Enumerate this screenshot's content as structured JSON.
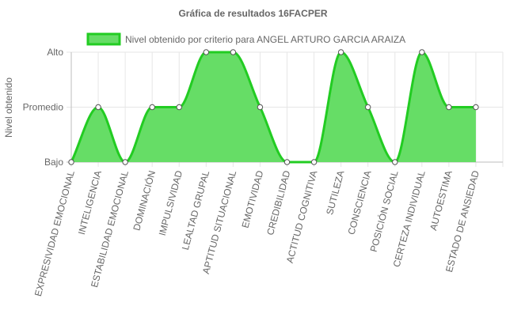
{
  "colors": {
    "fill": "#66dd66",
    "line": "#22cc22",
    "point_fill": "#ffffff",
    "point_stroke": "#555555",
    "text": "#666666"
  },
  "chart_data": {
    "type": "area",
    "title": "Gráfica de resultados 16FACPER",
    "ylabel": "Nivel obtenido",
    "xlabel": "",
    "legend_position": "top",
    "grid": true,
    "y_levels": [
      "Bajo",
      "Promedio",
      "Alto"
    ],
    "ylim": [
      0,
      2
    ],
    "categories": [
      "EXPRESIVIDAD EMOCIONAL",
      "INTELIGENCIA",
      "ESTABILIDAD EMOCIONAL",
      "DOMINACIÓN",
      "IMPULSIVIDAD",
      "LEALTAD GRUPAL",
      "APTITUD SITUACIONAL",
      "EMOTIVIDAD",
      "CREDIBILIDAD",
      "ACTITUD COGNITIVA",
      "SUTILEZA",
      "CONSCIENCIA",
      "POSICIÓN SOCIAL",
      "CERTEZA INDIVIDUAL",
      "AUTOESTIMA",
      "ESTADO DE ANSIEDAD"
    ],
    "series": [
      {
        "name": "Nivel obtenido por criterio para ANGEL ARTURO GARCIA ARAIZA",
        "values": [
          0,
          1,
          0,
          1,
          1,
          2,
          2,
          1,
          0,
          0,
          2,
          1,
          0,
          2,
          1,
          1
        ]
      }
    ]
  }
}
